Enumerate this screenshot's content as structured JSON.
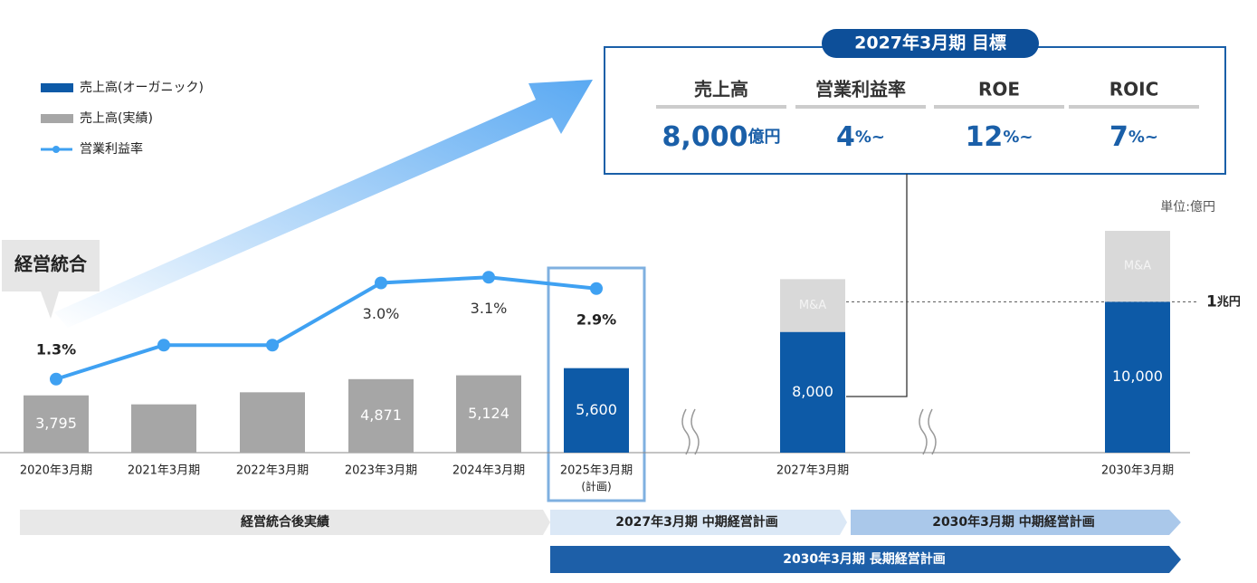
{
  "chart_data": {
    "type": "bar",
    "categories": [
      "2020年3月期",
      "2021年3月期",
      "2022年3月期",
      "2023年3月期",
      "2024年3月期",
      "2025年3月期",
      "2027年3月期",
      "2030年3月期"
    ],
    "category_notes": [
      null,
      null,
      null,
      null,
      null,
      "(計画)",
      null,
      null
    ],
    "ylim": [
      0,
      15000
    ],
    "y2lim": [
      0,
      4
    ],
    "series": [
      {
        "name": "売上高(オーガニック)",
        "color": "#0d5aa7",
        "values": [
          null,
          null,
          null,
          null,
          null,
          5600,
          8000,
          10000
        ],
        "value_labels": [
          null,
          null,
          null,
          null,
          null,
          "5,600",
          "8,000",
          "10,000"
        ]
      },
      {
        "name": "売上高(実績)",
        "color": "#a6a6a6",
        "values": [
          3795,
          3200,
          4000,
          4871,
          5124,
          null,
          null,
          null
        ],
        "value_labels": [
          "3,795",
          null,
          null,
          "4,871",
          "5,124",
          null,
          null,
          null
        ]
      },
      {
        "name": "M&A",
        "color": "#d9d9d9",
        "values": [
          null,
          null,
          null,
          null,
          null,
          null,
          3500,
          4700
        ]
      },
      {
        "name": "営業利益率",
        "type": "line",
        "axis": "y2",
        "color": "#3fa1f2",
        "values": [
          1.3,
          1.9,
          1.9,
          3.0,
          3.1,
          2.9,
          null,
          null
        ],
        "value_labels": [
          "1.3%",
          null,
          null,
          "3.0%",
          "3.1%",
          "2.9%",
          null,
          null
        ]
      }
    ],
    "reference_line": {
      "value": 10000,
      "label": "1",
      "unit": "兆円"
    },
    "unit_note": "単位:億円",
    "callout": "経営統合",
    "target": {
      "title": "2027年3月期 目標",
      "items": [
        {
          "label": "売上高",
          "value": "8,000",
          "unit": "億円"
        },
        {
          "label": "営業利益率",
          "value": "4",
          "unit": "%~"
        },
        {
          "label": "ROE",
          "value": "12",
          "unit": "%~"
        },
        {
          "label": "ROIC",
          "value": "7",
          "unit": "%~"
        }
      ]
    },
    "phases": [
      "経営統合後実績",
      "2027年3月期 中期経営計画",
      "2030年3月期 中期経営計画",
      "2030年3月期 長期経営計画"
    ]
  }
}
